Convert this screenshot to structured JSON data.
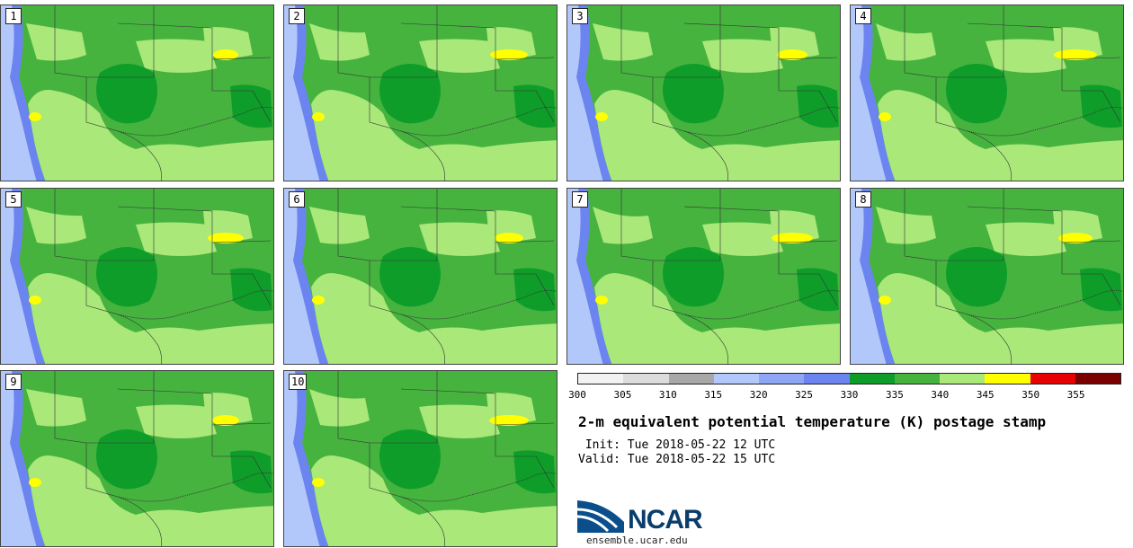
{
  "panels": [
    {
      "label": "1"
    },
    {
      "label": "2"
    },
    {
      "label": "3"
    },
    {
      "label": "4"
    },
    {
      "label": "5"
    },
    {
      "label": "6"
    },
    {
      "label": "7"
    },
    {
      "label": "8"
    },
    {
      "label": "9"
    },
    {
      "label": "10"
    }
  ],
  "colorbar": {
    "colors": [
      "#f2f2f2",
      "#dcdcdc",
      "#a8a8a8",
      "#b3c8fa",
      "#8fa5f5",
      "#6c84ef",
      "#0f9d2a",
      "#46b33f",
      "#a9e879",
      "#ffff00",
      "#e60000",
      "#7a0000"
    ],
    "ticks": [
      "300",
      "305",
      "310",
      "315",
      "320",
      "325",
      "330",
      "335",
      "340",
      "345",
      "350",
      "355"
    ]
  },
  "title": "2-m equivalent potential temperature (K) postage stamp",
  "init": " Init: Tue 2018-05-22 12 UTC",
  "valid": "Valid: Tue 2018-05-22 15 UTC",
  "logo_text": "NCAR",
  "url": "ensemble.ucar.edu",
  "map_colors": {
    "ocean_far": "#b3c8fa",
    "ocean_near": "#6c84ef",
    "dark_green": "#0f9d2a",
    "mid_green": "#46b33f",
    "light_green": "#a9e879",
    "yellow": "#ffff00",
    "boundary": "#333333"
  }
}
